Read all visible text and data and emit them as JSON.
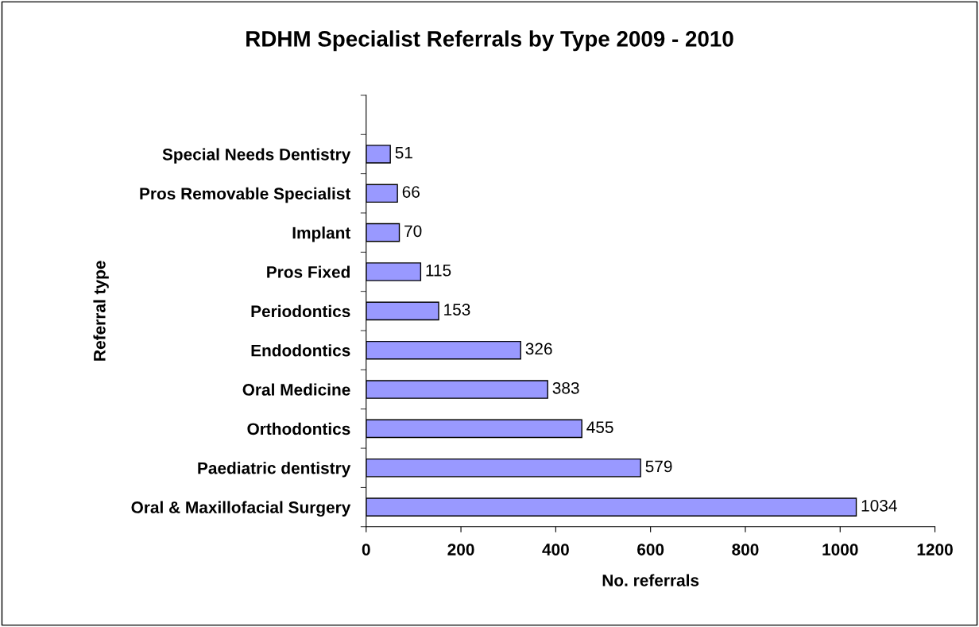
{
  "chart_data": {
    "type": "bar",
    "orientation": "horizontal",
    "title": "RDHM Specialist Referrals by Type 2009 - 2010",
    "xlabel": "No. referrals",
    "ylabel": "Referral type",
    "categories": [
      null,
      "Special Needs Dentistry",
      "Pros Removable Specialist",
      "Implant",
      "Pros Fixed",
      "Periodontics",
      "Endodontics",
      "Oral Medicine",
      "Orthodontics",
      "Paediatric dentistry",
      "Oral & Maxillofacial Surgery"
    ],
    "values": [
      null,
      51,
      66,
      70,
      115,
      153,
      326,
      383,
      455,
      579,
      1034
    ],
    "color": "#9999ff",
    "xlim": [
      0,
      1200
    ],
    "xticks": [
      0,
      200,
      400,
      600,
      800,
      1000,
      1200
    ],
    "data_labels": true,
    "grid": false,
    "legend": false
  }
}
